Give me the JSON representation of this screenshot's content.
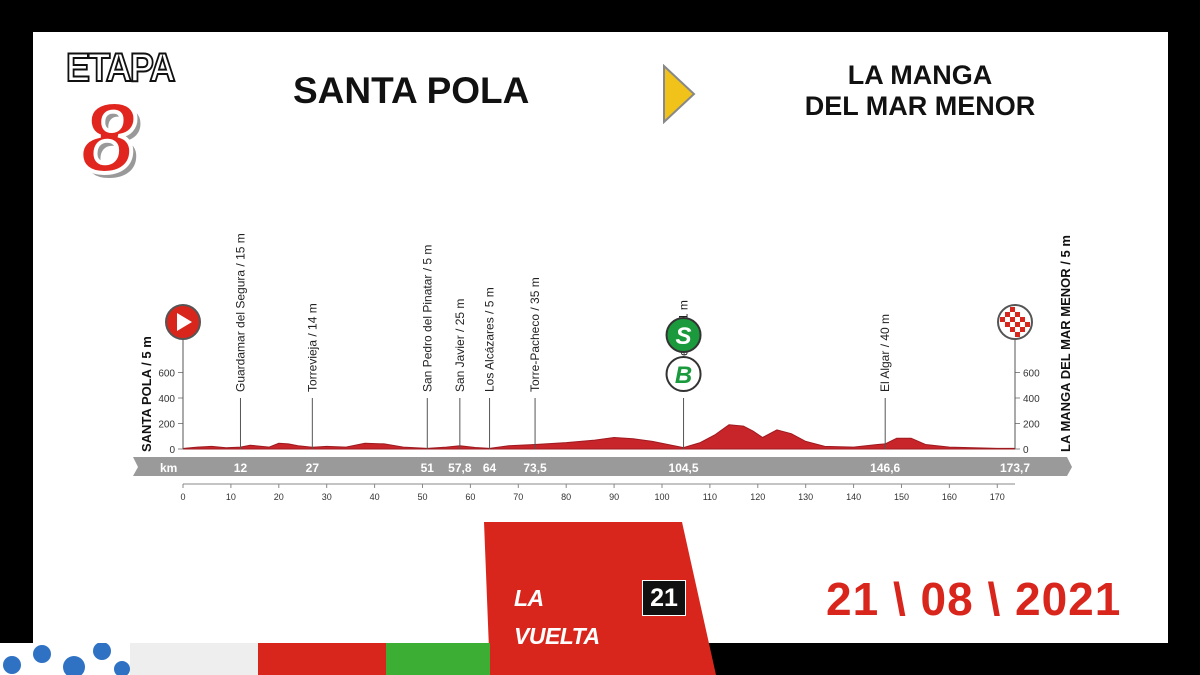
{
  "header": {
    "stage_word": "ETAPA",
    "stage_number": "8",
    "start_city": "SANTA POLA",
    "finish_city_line1": "LA MANGA",
    "finish_city_line2": "DEL MAR MENOR",
    "date": "21 \\ 08 \\ 2021"
  },
  "logo": {
    "name": "LA VUELTA",
    "year": "21"
  },
  "colors": {
    "red": "#d9261d",
    "profile_red": "#c8252b",
    "grey_bar": "#9a9a9a",
    "green_sprint": "#1a9a3c"
  },
  "icons": [
    "start-play-icon",
    "finish-checkered-icon",
    "sprint-s-icon",
    "bonus-b-icon"
  ],
  "chart_data": {
    "type": "area",
    "title": "",
    "start_label": "SANTA POLA / 5 m",
    "finish_label": "LA MANGA DEL MAR MENOR / 5 m",
    "km_label": "km",
    "y_ticks": [
      0,
      200,
      400,
      600
    ],
    "ylim": [
      0,
      800
    ],
    "xlim": [
      0,
      173.7
    ],
    "x_ticks": [
      0,
      10,
      20,
      30,
      40,
      50,
      60,
      70,
      80,
      90,
      100,
      110,
      120,
      130,
      140,
      150,
      160,
      170
    ],
    "profile": [
      [
        0,
        5
      ],
      [
        3,
        15
      ],
      [
        6,
        20
      ],
      [
        9,
        10
      ],
      [
        12,
        15
      ],
      [
        14,
        30
      ],
      [
        18,
        15
      ],
      [
        20,
        45
      ],
      [
        22,
        40
      ],
      [
        24,
        25
      ],
      [
        27,
        14
      ],
      [
        30,
        20
      ],
      [
        34,
        15
      ],
      [
        38,
        45
      ],
      [
        42,
        40
      ],
      [
        46,
        15
      ],
      [
        51,
        5
      ],
      [
        55,
        15
      ],
      [
        57.8,
        25
      ],
      [
        61,
        12
      ],
      [
        64,
        5
      ],
      [
        68,
        25
      ],
      [
        73.5,
        35
      ],
      [
        80,
        50
      ],
      [
        86,
        70
      ],
      [
        90,
        90
      ],
      [
        94,
        80
      ],
      [
        98,
        60
      ],
      [
        102,
        30
      ],
      [
        104.5,
        11
      ],
      [
        108,
        50
      ],
      [
        111,
        110
      ],
      [
        114,
        190
      ],
      [
        117,
        180
      ],
      [
        119,
        140
      ],
      [
        121,
        90
      ],
      [
        124,
        150
      ],
      [
        127,
        120
      ],
      [
        130,
        60
      ],
      [
        134,
        20
      ],
      [
        140,
        15
      ],
      [
        145,
        35
      ],
      [
        146.6,
        40
      ],
      [
        149,
        85
      ],
      [
        152,
        85
      ],
      [
        155,
        35
      ],
      [
        160,
        15
      ],
      [
        165,
        10
      ],
      [
        170,
        5
      ],
      [
        173.7,
        5
      ]
    ],
    "waypoints": [
      {
        "km": "12",
        "label": "Guardamar del Segura / 15 m",
        "pos": 12
      },
      {
        "km": "27",
        "label": "Torrevieja / 14 m",
        "pos": 27
      },
      {
        "km": "51",
        "label": "San Pedro del Pinatar / 5 m",
        "pos": 51
      },
      {
        "km": "57,8",
        "label": "San Javier / 25 m",
        "pos": 57.8
      },
      {
        "km": "64",
        "label": "Los Alcázares / 5 m",
        "pos": 64
      },
      {
        "km": "73,5",
        "label": "Torre-Pacheco / 35 m",
        "pos": 73.5
      },
      {
        "km": "104,5",
        "label": "Cartagena / 11 m",
        "pos": 104.5
      },
      {
        "km": "146,6",
        "label": "El Algar / 40 m",
        "pos": 146.6
      },
      {
        "km": "173,7",
        "label": "",
        "pos": 173.7
      }
    ],
    "sprint_marker": {
      "letter": "S",
      "pos": 104.5
    },
    "bonus_marker": {
      "letter": "B",
      "pos": 104.5
    }
  }
}
